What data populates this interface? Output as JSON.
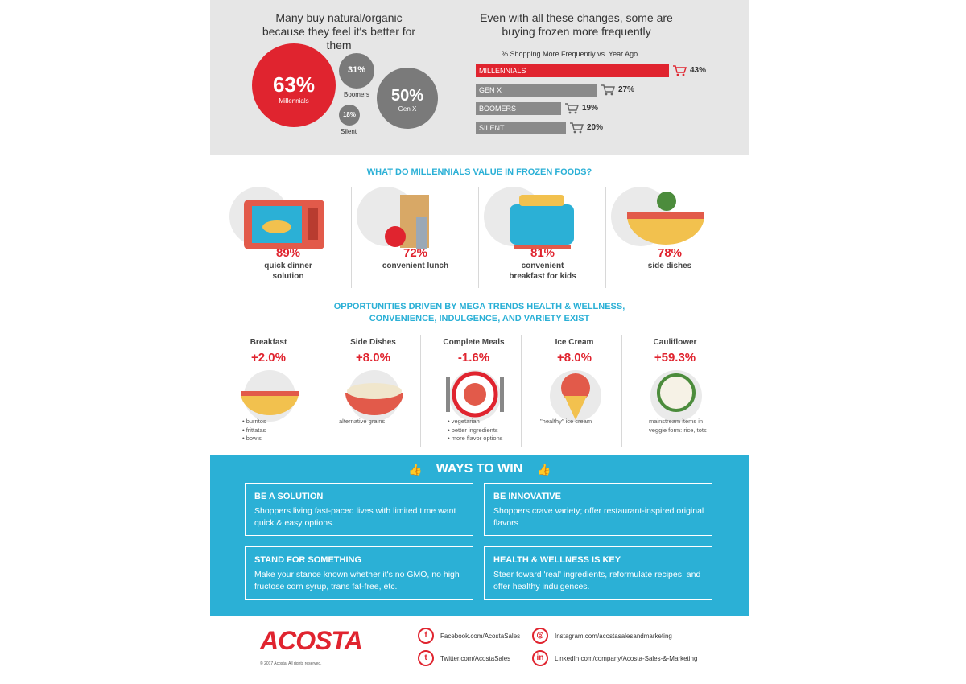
{
  "top": {
    "left_heading": "Many buy natural/organic because they feel it's better for them",
    "right_heading": "Even with all these changes, some are buying frozen more frequently",
    "bars_caption": "% Shopping More Frequently vs. Year Ago",
    "circles": [
      {
        "pct": "63%",
        "label": "Millennials"
      },
      {
        "pct": "31%",
        "label": "Boomers"
      },
      {
        "pct": "50%",
        "label": "Gen X"
      },
      {
        "pct": "18%",
        "label": "Silent"
      }
    ],
    "bars": [
      {
        "label": "MILLENNIALS",
        "value": 43,
        "text": "43%"
      },
      {
        "label": "GEN X",
        "value": 27,
        "text": "27%"
      },
      {
        "label": "BOOMERS",
        "value": 19,
        "text": "19%"
      },
      {
        "label": "SILENT",
        "value": 20,
        "text": "20%"
      }
    ],
    "colors": {
      "accent": "#e0242f",
      "gray": "#8a8a8a",
      "panel": "#e6e6e6"
    }
  },
  "values": {
    "title": "WHAT DO MILLENNIALS VALUE IN FROZEN FOODS?",
    "items": [
      {
        "pct": "89%",
        "label": "quick dinner solution",
        "icon": "microwave-icon"
      },
      {
        "pct": "72%",
        "label": "convenient lunch",
        "icon": "lunch-bag-icon"
      },
      {
        "pct": "81%",
        "label": "convenient breakfast for kids",
        "icon": "toaster-icon"
      },
      {
        "pct": "78%",
        "label": "side dishes",
        "icon": "salad-bowl-icon"
      }
    ]
  },
  "opportunities": {
    "title_line1": "OPPORTUNITIES DRIVEN BY MEGA TRENDS HEALTH & WELLNESS,",
    "title_line2": "CONVENIENCE, INDULGENCE, AND VARIETY EXIST",
    "items": [
      {
        "name": "Breakfast",
        "value": "+2.0%",
        "notes": [
          "• burritos",
          "• frittatas",
          "• bowls"
        ],
        "icon": "breakfast-bowl-icon"
      },
      {
        "name": "Side Dishes",
        "value": "+8.0%",
        "notes": [
          "alternative grains"
        ],
        "icon": "grain-bowl-icon"
      },
      {
        "name": "Complete Meals",
        "value": "-1.6%",
        "notes": [
          "• vegetarian",
          "• better ingredients",
          "• more flavor options"
        ],
        "icon": "plate-icon"
      },
      {
        "name": "Ice Cream",
        "value": "+8.0%",
        "notes": [
          "\"healthy\" ice cream"
        ],
        "icon": "ice-cream-icon"
      },
      {
        "name": "Cauliflower",
        "value": "+59.3%",
        "notes": [
          "mainstream items in",
          "veggie form: rice, tots"
        ],
        "icon": "cauliflower-icon"
      }
    ]
  },
  "ways": {
    "title": "WAYS TO WIN",
    "boxes": [
      {
        "title": "BE A SOLUTION",
        "text": "Shoppers living fast-paced lives with limited time want quick & easy options."
      },
      {
        "title": "BE INNOVATIVE",
        "text": "Shoppers crave variety; offer restaurant-inspired original flavors"
      },
      {
        "title": "STAND FOR SOMETHING",
        "text": "Make your stance known whether it's no GMO, no high fructose corn syrup, trans fat-free, etc."
      },
      {
        "title": "HEALTH & WELLNESS IS KEY",
        "text": "Steer toward 'real' ingredients, reformulate recipes, and offer healthy indulgences."
      }
    ]
  },
  "footer": {
    "logo": "ACOSTA",
    "copyright": "© 2017 Acosta, All rights reserved.",
    "social": [
      {
        "icon": "f",
        "text": "Facebook.com/AcostaSales"
      },
      {
        "icon": "◎",
        "text": "Instagram.com/acostasalesandmarketing"
      },
      {
        "icon": "t",
        "text": "Twitter.com/AcostaSales"
      },
      {
        "icon": "in",
        "text": "LinkedIn.com/company/Acosta-Sales-&-Marketing"
      }
    ]
  }
}
